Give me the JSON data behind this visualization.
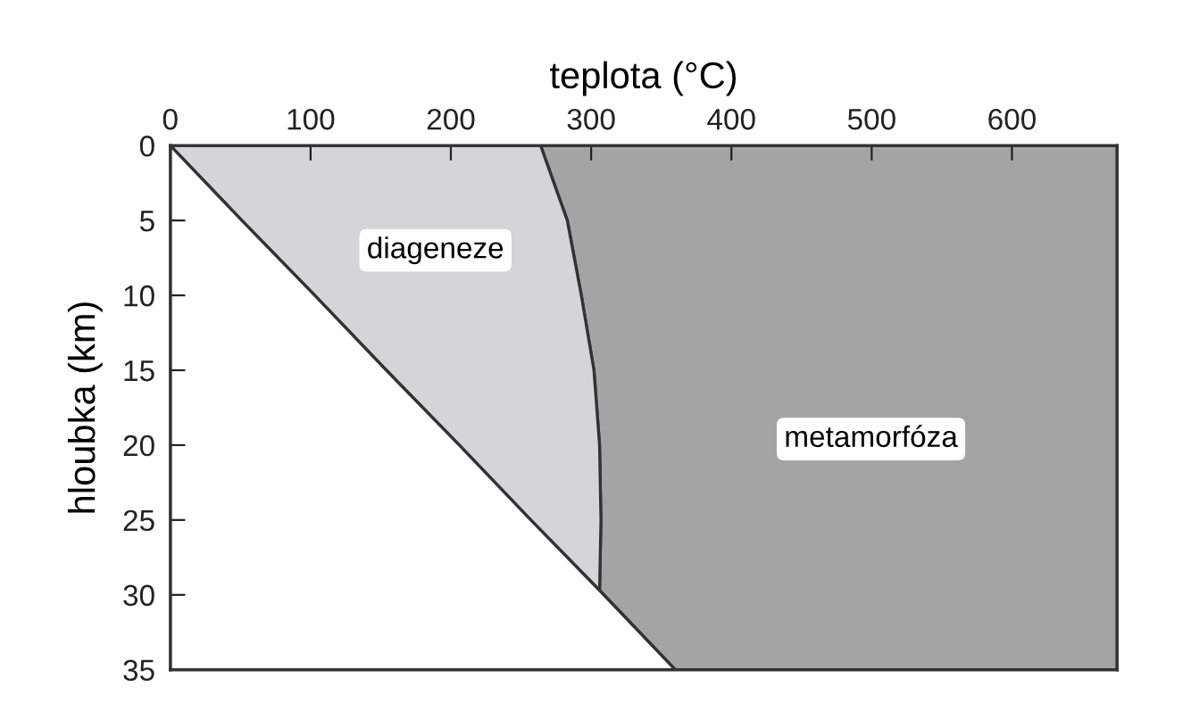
{
  "chart_data": {
    "type": "area",
    "orientation": "horizontal",
    "xlabel": "teplota (°C)",
    "ylabel": "hloubka (km)",
    "x": [
      0,
      5,
      10,
      15,
      20,
      25,
      29.7,
      35
    ],
    "series": [
      {
        "color": "#ffffff",
        "values": [
          0,
          51,
          103,
          154,
          206,
          257,
          306,
          360
        ]
      },
      {
        "color": "#d3d5d8",
        "values": [
          264,
          283,
          293,
          302,
          306,
          307,
          306,
          null
        ]
      },
      {
        "color": "#a4a4a4",
        "values": [
          675,
          675,
          675,
          675,
          675,
          675,
          675,
          675
        ]
      }
    ],
    "xlim": [
      0,
      675
    ],
    "xticks": [
      0,
      100,
      200,
      300,
      400,
      500,
      600
    ],
    "ylim": [
      35,
      0
    ],
    "yticks": [
      0,
      5,
      10,
      15,
      20,
      25,
      30,
      35
    ],
    "annotations": [
      "diageneze",
      "metamorfóza"
    ],
    "grid": false,
    "legend": false
  }
}
